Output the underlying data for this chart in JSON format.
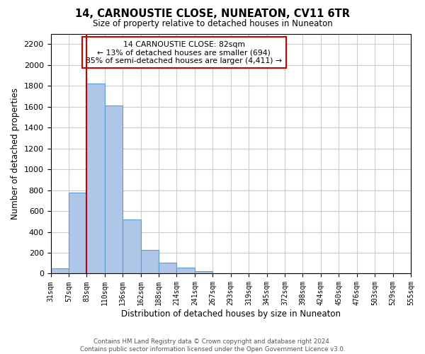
{
  "title": "14, CARNOUSTIE CLOSE, NUNEATON, CV11 6TR",
  "subtitle": "Size of property relative to detached houses in Nuneaton",
  "xlabel": "Distribution of detached houses by size in Nuneaton",
  "ylabel": "Number of detached properties",
  "bar_values": [
    50,
    780,
    1820,
    1610,
    520,
    230,
    105,
    55,
    25,
    0,
    0,
    0,
    0,
    0,
    0,
    0,
    0,
    0,
    0,
    0
  ],
  "tick_labels": [
    "31sqm",
    "57sqm",
    "83sqm",
    "110sqm",
    "136sqm",
    "162sqm",
    "188sqm",
    "214sqm",
    "241sqm",
    "267sqm",
    "293sqm",
    "319sqm",
    "345sqm",
    "372sqm",
    "398sqm",
    "424sqm",
    "450sqm",
    "476sqm",
    "503sqm",
    "529sqm",
    "555sqm"
  ],
  "bar_color": "#aec6e8",
  "bar_edge_color": "#5a9fd4",
  "vline_color": "#cc0000",
  "vline_x_index": 2,
  "annotation_title": "14 CARNOUSTIE CLOSE: 82sqm",
  "annotation_line1": "← 13% of detached houses are smaller (694)",
  "annotation_line2": "85% of semi-detached houses are larger (4,411) →",
  "ylim": [
    0,
    2300
  ],
  "yticks": [
    0,
    200,
    400,
    600,
    800,
    1000,
    1200,
    1400,
    1600,
    1800,
    2000,
    2200
  ],
  "footer_line1": "Contains HM Land Registry data © Crown copyright and database right 2024.",
  "footer_line2": "Contains public sector information licensed under the Open Government Licence v3.0.",
  "grid_color": "#cccccc",
  "background_color": "#ffffff"
}
